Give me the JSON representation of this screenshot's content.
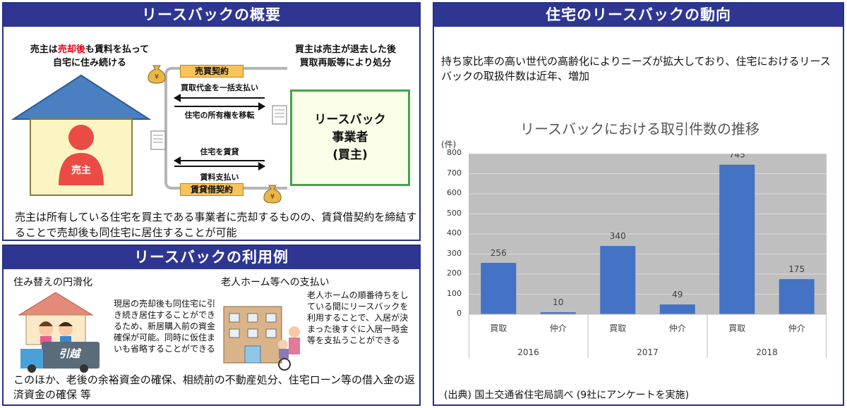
{
  "overview": {
    "title": "リースバックの概要",
    "seller_line1_a": "売主は",
    "seller_line1_red": "売却後",
    "seller_line1_b": "も賃料を払って",
    "seller_line2": "自宅に住み続ける",
    "buyer_line1": "買主は売主が退去した後",
    "buyer_line2": "買取再販等により処分",
    "seller_label": "売主",
    "sale_contract": "売買契約",
    "pay_lump": "買取代金を一括支払い",
    "transfer": "住宅の所有権を移転",
    "lease_house": "住宅を賃貸",
    "pay_rent": "賃料支払い",
    "lease_contract": "賃貸借契約",
    "company_line1": "リースバック",
    "company_line2": "事業者",
    "company_line3": "(買主)",
    "summary": "売主は所有している住宅を買主である事業者に売却するものの、賃貸借契約を締結することで売却後も同住宅に居住することが可能",
    "colors": {
      "house": "#4a7fc1",
      "wall": "#fdf4c3",
      "person": "#ea4c45",
      "company_border": "#46a349",
      "company_bg": "#fafde8",
      "contract": "#f9c35a"
    }
  },
  "usage": {
    "title": "リースバックの利用例",
    "case1_title": "住み替えの円滑化",
    "case1_text": "現居の売却後も同住宅に引き続き居住することができるため、新居購入前の資金確保が可能。同時に仮住まいも省略することができる",
    "truck_text": "引越",
    "case2_title": "老人ホーム等への支払い",
    "case2_text": "老人ホームの順番待ちをしている間にリースバックを利用することで、入居が決まった後すぐに入居一時金等を支払うことができる",
    "footer": "このほか、老後の余裕資金の確保、相続前の不動産処分、住宅ローン等の借入金の返済資金の確保 等"
  },
  "trend": {
    "title": "住宅のリースバックの動向",
    "description": "持ち家比率の高い世代の高齢化によりニーズが拡大しており、住宅におけるリースバックの取扱件数は近年、増加",
    "source": "(出典) 国土交通省住宅局調べ (9社にアンケートを実施)"
  },
  "chart_data": {
    "type": "bar",
    "title": "リースバックにおける取引件数の推移",
    "ylabel": "(件)",
    "ylim": [
      0,
      800
    ],
    "yticks": [
      "0",
      "100",
      "200",
      "300",
      "400",
      "500",
      "600",
      "700",
      "800"
    ],
    "categories": [
      "買取",
      "仲介",
      "買取",
      "仲介",
      "買取",
      "仲介"
    ],
    "groups": [
      "2016",
      "2017",
      "2018"
    ],
    "values": [
      256,
      10,
      340,
      49,
      745,
      175
    ],
    "grid": true,
    "bar_color": "#4472c4",
    "plot_bg": "#bfbfbf"
  }
}
